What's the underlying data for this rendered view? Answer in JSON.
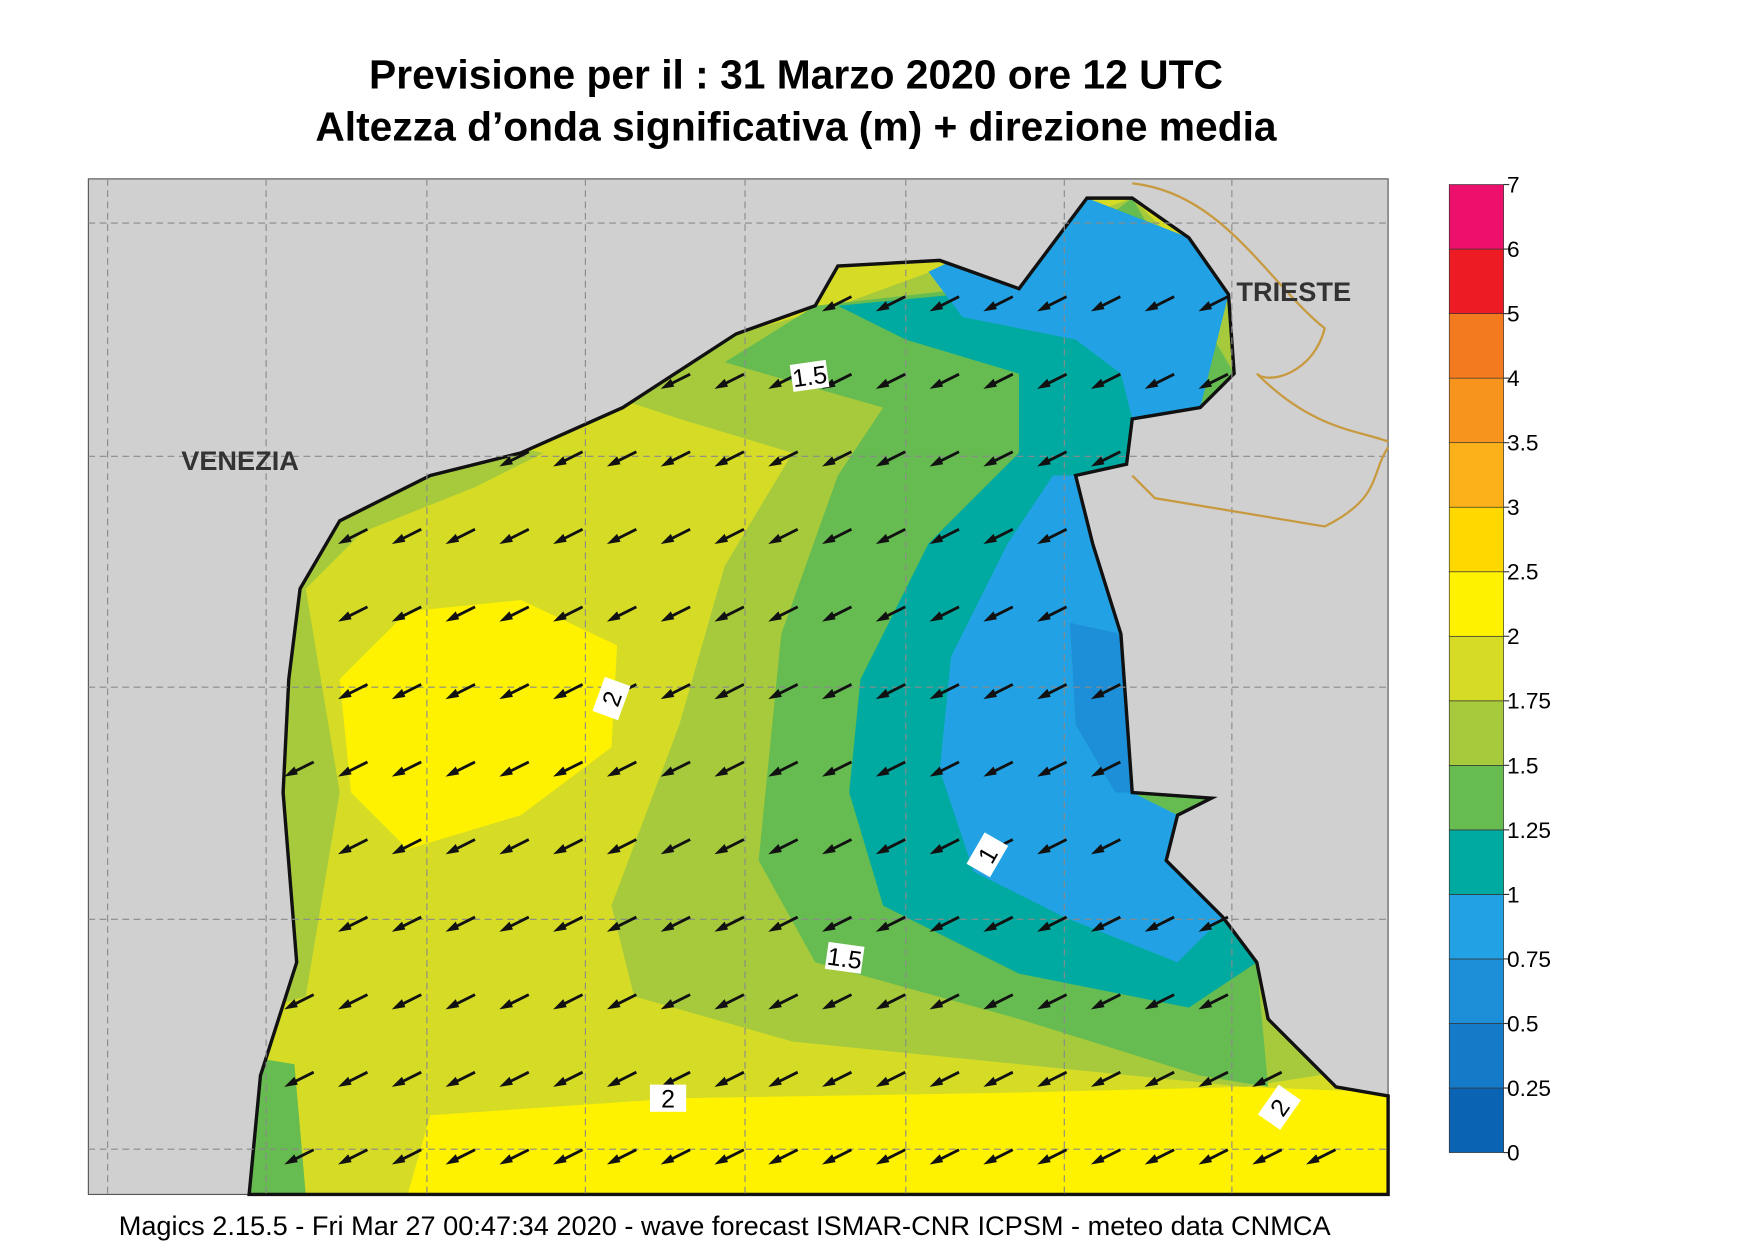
{
  "title": [
    "Previsione per il  :  31   Marzo   2020   ore 12 UTC",
    "Altezza d’onda significativa (m) + direzione media"
  ],
  "places": [
    "VENEZIA",
    "TRIESTE"
  ],
  "contour_labels": [
    "1.5",
    "2",
    "1",
    "1.5",
    "2",
    "2"
  ],
  "colorbar": {
    "ticks": [
      0,
      0.25,
      0.5,
      0.75,
      1,
      1.25,
      1.5,
      1.75,
      2,
      2.5,
      3,
      3.5,
      4,
      5,
      6,
      7
    ],
    "colors": [
      "#0b63b4",
      "#157bc8",
      "#1c8fd8",
      "#22a2e4",
      "#00aaa0",
      "#66bc50",
      "#a6ca3c",
      "#d6dc26",
      "#fff200",
      "#ffd800",
      "#fbb11a",
      "#f7941d",
      "#f47a20",
      "#ed1c24",
      "#ec0f6c"
    ]
  },
  "footer": "Magics 2.15.5 - Fri Mar 27 00:47:34 2020 - wave forecast  ISMAR-CNR  ICPSM - meteo data   CNMCA"
}
